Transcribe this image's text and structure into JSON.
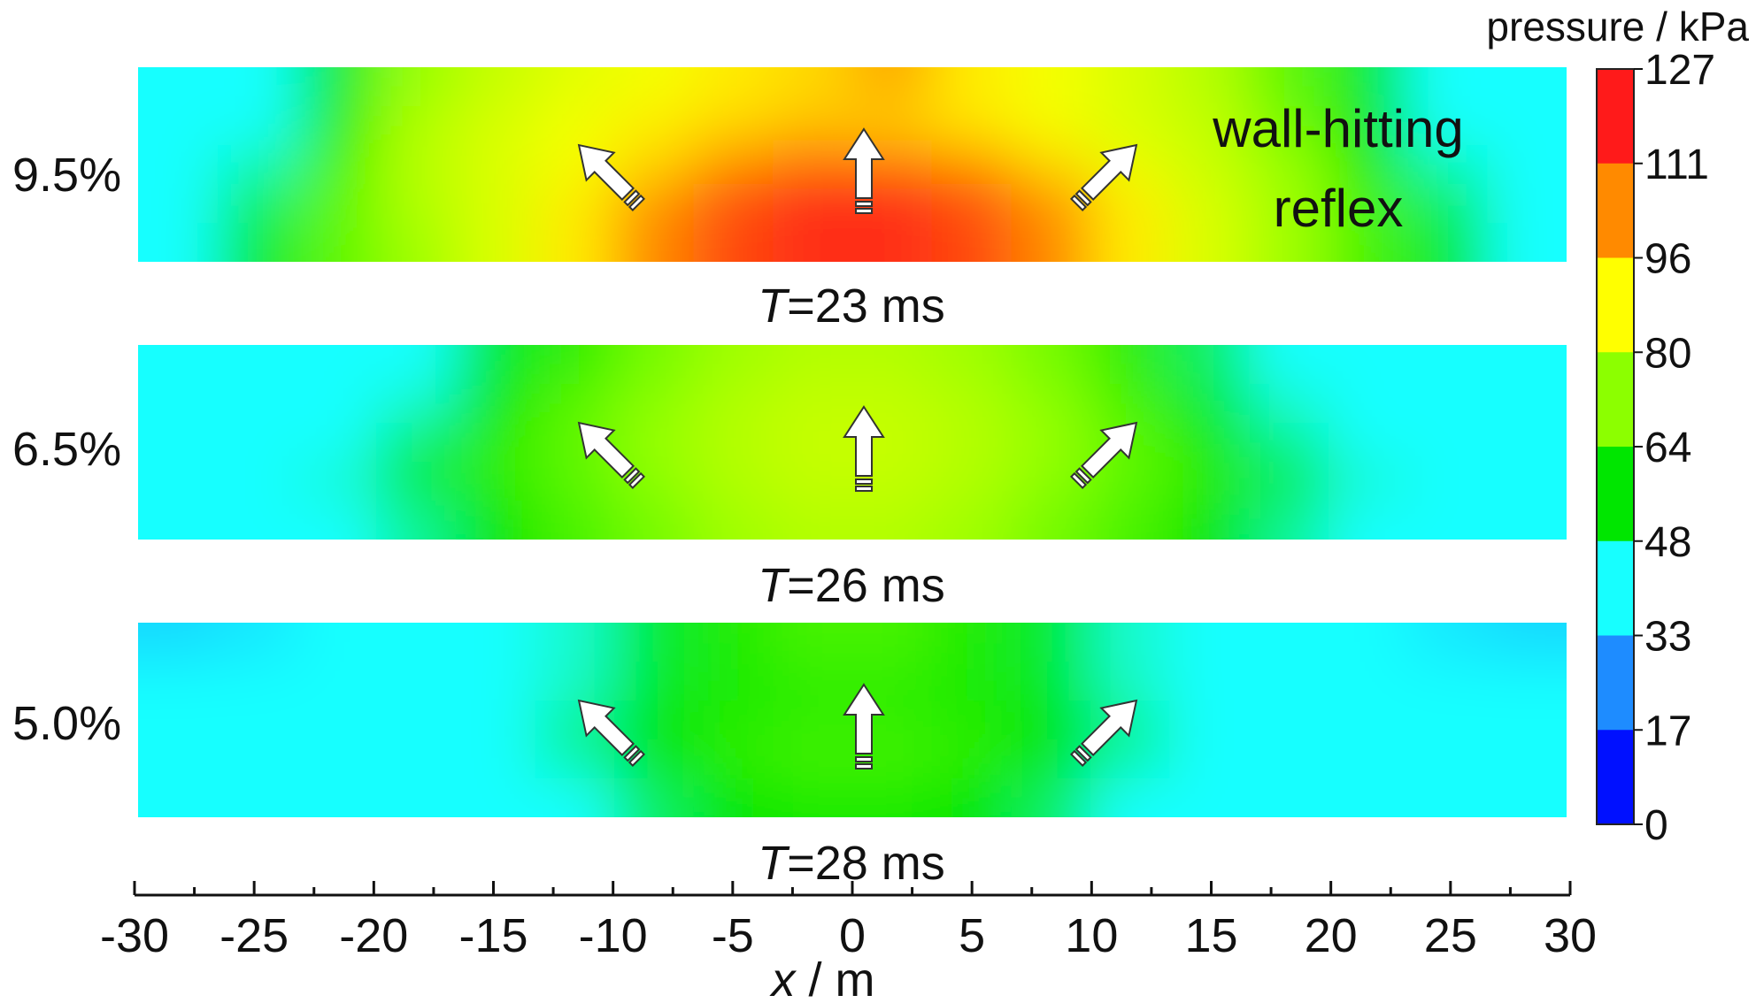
{
  "chart_data": {
    "type": "heatmap",
    "colorbar": {
      "title": "pressure / kPa",
      "ticks": [
        "127",
        "111",
        "96",
        "80",
        "64",
        "48",
        "33",
        "17",
        "0"
      ],
      "colors": [
        "#ff1a1a",
        "#ff8a00",
        "#ffff00",
        "#8cff00",
        "#00e600",
        "#17ffff",
        "#1e8cff",
        "#0010ff"
      ]
    },
    "x_axis": {
      "label_var": "x",
      "label_unit": " / m",
      "range": [
        -30,
        30
      ],
      "ticks": [
        -30,
        -25,
        -20,
        -15,
        -10,
        -5,
        0,
        5,
        10,
        15,
        20,
        25,
        30
      ],
      "tick_labels": [
        "-30",
        "-25",
        "-20",
        "-15",
        "-10",
        "-5",
        "0",
        "5",
        "10",
        "15",
        "20",
        "25",
        "30"
      ]
    },
    "panels": [
      {
        "row_label": "9.5%",
        "time_var": "T",
        "time_text": "=23 ms",
        "annotation": [
          "wall-hitting",
          "reflex"
        ],
        "field": [
          [
            0.4,
            0.42,
            0.5,
            0.65,
            0.7,
            0.73,
            0.75,
            0.78,
            0.8,
            0.85,
            0.78,
            0.75,
            0.72,
            0.68,
            0.6,
            0.5,
            0.42,
            0.4
          ],
          [
            0.4,
            0.42,
            0.55,
            0.68,
            0.72,
            0.75,
            0.78,
            0.8,
            0.82,
            0.8,
            0.78,
            0.75,
            0.72,
            0.7,
            0.62,
            0.52,
            0.42,
            0.4
          ],
          [
            0.4,
            0.45,
            0.58,
            0.68,
            0.72,
            0.75,
            0.8,
            0.88,
            0.92,
            0.92,
            0.88,
            0.8,
            0.74,
            0.7,
            0.65,
            0.55,
            0.45,
            0.4
          ],
          [
            0.4,
            0.48,
            0.6,
            0.68,
            0.72,
            0.78,
            0.88,
            0.95,
            0.99,
            0.99,
            0.95,
            0.88,
            0.78,
            0.72,
            0.66,
            0.58,
            0.48,
            0.4
          ],
          [
            0.4,
            0.5,
            0.6,
            0.66,
            0.72,
            0.78,
            0.88,
            0.95,
            0.98,
            0.98,
            0.95,
            0.88,
            0.78,
            0.72,
            0.66,
            0.58,
            0.5,
            0.4
          ]
        ]
      },
      {
        "row_label": "6.5%",
        "time_var": "T",
        "time_text": "=26 ms",
        "annotation": [],
        "field": [
          [
            0.3,
            0.34,
            0.38,
            0.42,
            0.5,
            0.56,
            0.62,
            0.66,
            0.68,
            0.68,
            0.66,
            0.62,
            0.56,
            0.48,
            0.42,
            0.38,
            0.32,
            0.3
          ],
          [
            0.32,
            0.36,
            0.4,
            0.44,
            0.52,
            0.6,
            0.64,
            0.68,
            0.7,
            0.7,
            0.68,
            0.64,
            0.58,
            0.5,
            0.44,
            0.4,
            0.34,
            0.32
          ],
          [
            0.36,
            0.4,
            0.42,
            0.48,
            0.56,
            0.6,
            0.65,
            0.68,
            0.7,
            0.7,
            0.68,
            0.65,
            0.6,
            0.54,
            0.46,
            0.42,
            0.38,
            0.36
          ],
          [
            0.38,
            0.4,
            0.44,
            0.5,
            0.56,
            0.6,
            0.64,
            0.68,
            0.7,
            0.7,
            0.68,
            0.64,
            0.6,
            0.56,
            0.5,
            0.44,
            0.4,
            0.38
          ],
          [
            0.38,
            0.4,
            0.42,
            0.46,
            0.52,
            0.58,
            0.62,
            0.66,
            0.68,
            0.68,
            0.66,
            0.62,
            0.58,
            0.52,
            0.46,
            0.42,
            0.4,
            0.38
          ]
        ]
      },
      {
        "row_label": "5.0%",
        "time_var": "T",
        "time_text": "=28 ms",
        "annotation": [],
        "field": [
          [
            0.25,
            0.27,
            0.32,
            0.38,
            0.4,
            0.44,
            0.5,
            0.55,
            0.58,
            0.58,
            0.55,
            0.5,
            0.44,
            0.4,
            0.38,
            0.32,
            0.27,
            0.25
          ],
          [
            0.3,
            0.32,
            0.36,
            0.38,
            0.4,
            0.44,
            0.5,
            0.54,
            0.56,
            0.56,
            0.54,
            0.5,
            0.44,
            0.4,
            0.38,
            0.36,
            0.32,
            0.3
          ],
          [
            0.36,
            0.38,
            0.38,
            0.38,
            0.4,
            0.46,
            0.52,
            0.55,
            0.56,
            0.56,
            0.55,
            0.52,
            0.46,
            0.4,
            0.38,
            0.38,
            0.38,
            0.36
          ],
          [
            0.38,
            0.38,
            0.38,
            0.38,
            0.4,
            0.46,
            0.52,
            0.56,
            0.58,
            0.58,
            0.56,
            0.52,
            0.46,
            0.4,
            0.38,
            0.38,
            0.38,
            0.38
          ],
          [
            0.38,
            0.38,
            0.38,
            0.38,
            0.4,
            0.42,
            0.48,
            0.52,
            0.54,
            0.54,
            0.52,
            0.48,
            0.42,
            0.4,
            0.38,
            0.38,
            0.38,
            0.38
          ]
        ]
      }
    ]
  }
}
